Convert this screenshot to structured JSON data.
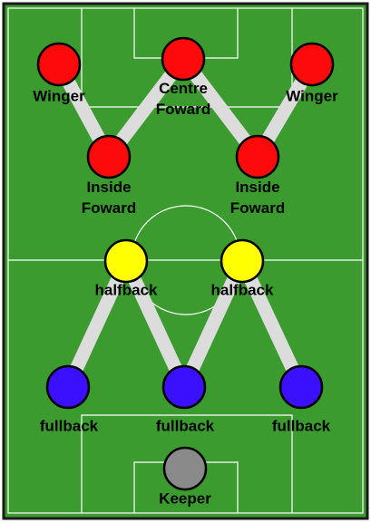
{
  "colors": {
    "grass": "#3b9b2f",
    "line": "#ffffff",
    "link": "#dcdcdc",
    "forward": "#ff0a0a",
    "halfback": "#ffff00",
    "fullback": "#3b10ff",
    "keeper": "#8a8a8a",
    "outline": "#000000",
    "border": "#1a1a1a"
  },
  "players": {
    "left_winger": {
      "label": "Winger",
      "role": "forward"
    },
    "centre_forward": {
      "label": "Centre Foward",
      "role": "forward"
    },
    "right_winger": {
      "label": "Winger",
      "role": "forward"
    },
    "left_inside_forward": {
      "label": "Inside Foward",
      "role": "forward"
    },
    "right_inside_forward": {
      "label": "Inside Foward",
      "role": "forward"
    },
    "left_halfback": {
      "label": "halfback",
      "role": "halfback"
    },
    "right_halfback": {
      "label": "halfback",
      "role": "halfback"
    },
    "left_fullback": {
      "label": "fullback",
      "role": "fullback"
    },
    "centre_fullback": {
      "label": "fullback",
      "role": "fullback"
    },
    "right_fullback": {
      "label": "fullback",
      "role": "fullback"
    },
    "keeper": {
      "label": "Keeper",
      "role": "keeper"
    }
  },
  "links": [
    [
      "left_winger",
      "left_inside_forward"
    ],
    [
      "left_inside_forward",
      "centre_forward"
    ],
    [
      "centre_forward",
      "right_inside_forward"
    ],
    [
      "right_inside_forward",
      "right_winger"
    ],
    [
      "left_fullback",
      "left_halfback"
    ],
    [
      "left_halfback",
      "centre_fullback"
    ],
    [
      "centre_fullback",
      "right_halfback"
    ],
    [
      "right_halfback",
      "right_fullback"
    ]
  ]
}
